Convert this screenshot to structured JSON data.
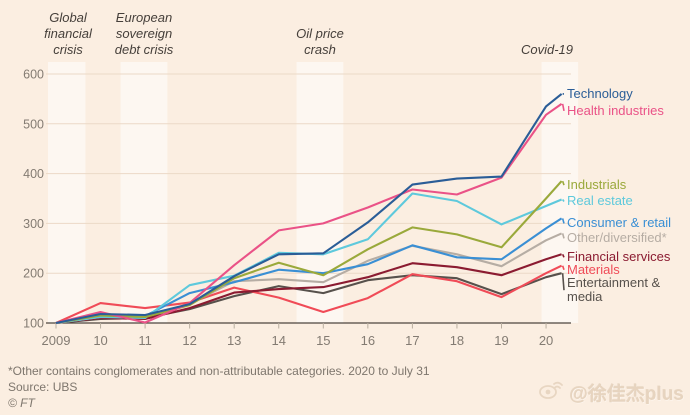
{
  "annotations": [
    {
      "id": "global-financial-crisis",
      "lines": [
        "Global",
        "financial",
        "crisis"
      ]
    },
    {
      "id": "european-sovereign-debt-crisis",
      "lines": [
        "European",
        "sovereign",
        "debt crisis"
      ]
    },
    {
      "id": "oil-price-crash",
      "lines": [
        "Oil price",
        "crash"
      ]
    },
    {
      "id": "covid-19",
      "lines": [
        "Covid-19"
      ]
    }
  ],
  "chart_data": {
    "type": "line",
    "grid": "horizontal",
    "legend_position": "right",
    "ylim": [
      100,
      600
    ],
    "y_ticks": [
      100,
      200,
      300,
      400,
      500,
      600
    ],
    "x_tick_labels": [
      "2009",
      "10",
      "11",
      "12",
      "13",
      "14",
      "15",
      "16",
      "17",
      "18",
      "19",
      "20"
    ],
    "x_tick_years": [
      2009,
      2010,
      2011,
      2012,
      2013,
      2014,
      2015,
      2016,
      2017,
      2018,
      2019,
      2020
    ],
    "x": [
      2009,
      2010,
      2011,
      2012,
      2013,
      2014,
      2015,
      2016,
      2017,
      2018,
      2019,
      2020,
      2020.35
    ],
    "series": [
      {
        "id": "technology",
        "name": "Technology",
        "color": "#2a5d97",
        "values": [
          100,
          118,
          116,
          138,
          194,
          238,
          240,
          302,
          378,
          390,
          394,
          535,
          560
        ]
      },
      {
        "id": "health-industries",
        "name": "Health industries",
        "color": "#ea5287",
        "values": [
          100,
          122,
          101,
          140,
          216,
          286,
          300,
          332,
          368,
          358,
          392,
          518,
          540
        ]
      },
      {
        "id": "industrials",
        "name": "Industrials",
        "color": "#9aa93b",
        "values": [
          100,
          115,
          112,
          136,
          190,
          221,
          196,
          248,
          292,
          278,
          252,
          350,
          385
        ]
      },
      {
        "id": "real-estate",
        "name": "Real estate",
        "color": "#5ec9dc",
        "values": [
          100,
          112,
          110,
          176,
          195,
          241,
          238,
          268,
          360,
          345,
          298,
          335,
          348
        ]
      },
      {
        "id": "consumer-retail",
        "name": "Consumer & retail",
        "color": "#3a8fd4",
        "values": [
          100,
          116,
          114,
          160,
          182,
          207,
          200,
          218,
          256,
          232,
          228,
          290,
          310
        ]
      },
      {
        "id": "other-diversified",
        "name": "Other/diversified*",
        "color": "#b6ada4",
        "values": [
          100,
          112,
          112,
          138,
          184,
          188,
          182,
          225,
          255,
          238,
          214,
          266,
          280
        ]
      },
      {
        "id": "financial-services",
        "name": "Financial services",
        "color": "#8b1b31",
        "values": [
          100,
          110,
          108,
          130,
          161,
          168,
          172,
          192,
          220,
          212,
          196,
          228,
          238
        ]
      },
      {
        "id": "materials",
        "name": "Materials",
        "color": "#f04b57",
        "values": [
          100,
          140,
          130,
          141,
          171,
          151,
          122,
          150,
          198,
          184,
          152,
          200,
          215
        ]
      },
      {
        "id": "entertainment-media",
        "name": "Entertainment & media",
        "color": "#57514c",
        "values": [
          100,
          108,
          110,
          128,
          154,
          174,
          160,
          186,
          196,
          190,
          158,
          192,
          200
        ]
      }
    ],
    "event_bands": [
      {
        "label": "Global financial crisis",
        "x0": 2008.82,
        "x1": 2009.66
      },
      {
        "label": "European sovereign debt crisis",
        "x0": 2010.45,
        "x1": 2011.5
      },
      {
        "label": "Oil price crash",
        "x0": 2014.4,
        "x1": 2015.45
      },
      {
        "label": "Covid-19",
        "x0": 2019.9,
        "x1": 2020.72
      }
    ],
    "colors": {
      "background": "#fbeee1",
      "band": "rgba(255,255,255,0.55)",
      "gridline": "#ebd9c7",
      "axis_line": "#4d463f",
      "tick": "#b9ae9f",
      "axis_text": "#837b72"
    }
  },
  "footer": {
    "note": "*Other contains conglomerates and non-attributable categories. 2020 to July 31",
    "source": "Source: UBS",
    "copyright": "© FT"
  },
  "watermark": {
    "text": "@徐佳杰plus"
  }
}
